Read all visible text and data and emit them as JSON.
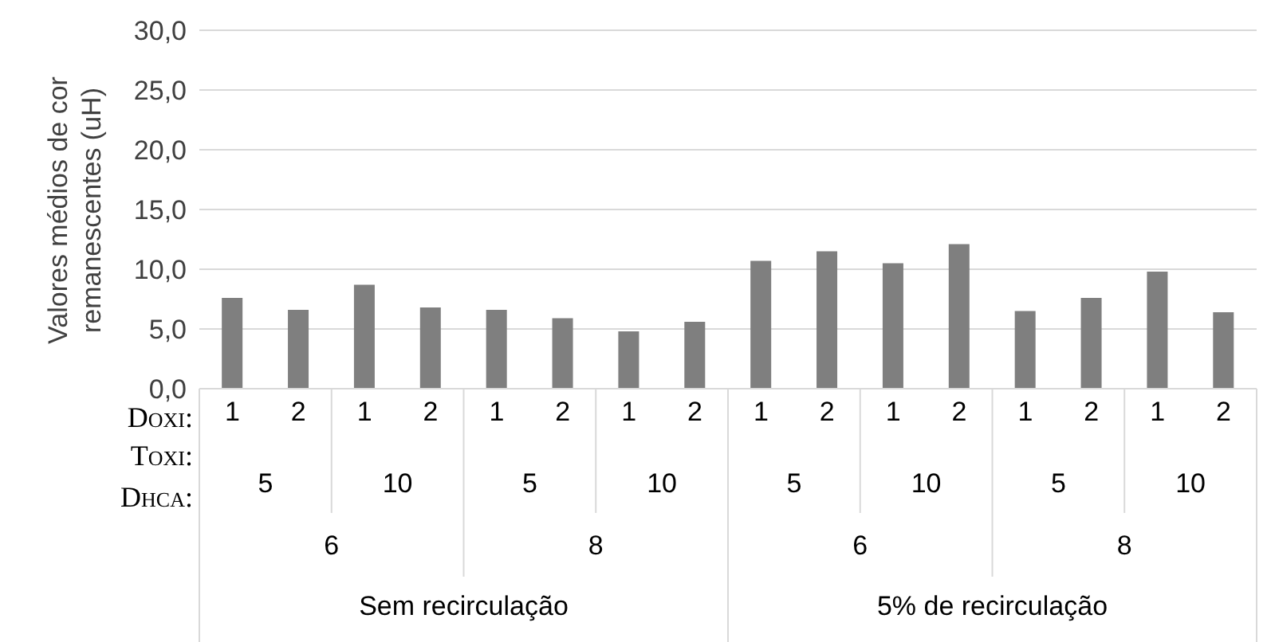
{
  "chart_data": {
    "type": "bar",
    "ylabel": "Valores médios de cor remanescentes (uH)",
    "categories": [
      "1",
      "2",
      "1",
      "2",
      "1",
      "2",
      "1",
      "2",
      "1",
      "2",
      "1",
      "2",
      "1",
      "2",
      "1",
      "2"
    ],
    "values": [
      7.6,
      6.6,
      8.7,
      6.8,
      6.6,
      5.9,
      4.8,
      5.6,
      10.7,
      11.5,
      10.5,
      12.1,
      6.5,
      7.6,
      9.8,
      6.4
    ],
    "color": "#7f7f7f",
    "ylim": [
      0,
      30
    ],
    "yticks": [
      {
        "value": 0,
        "label": "0,0"
      },
      {
        "value": 5,
        "label": "5,0"
      },
      {
        "value": 10,
        "label": "10,0"
      },
      {
        "value": 15,
        "label": "15,0"
      },
      {
        "value": 20,
        "label": "20,0"
      },
      {
        "value": 25,
        "label": "25,0"
      },
      {
        "value": 30,
        "label": "30,0"
      }
    ],
    "grid": "y",
    "annotations": [
      "Doxi:",
      "Toxi:",
      "Dhca:",
      "5",
      "10",
      "5",
      "10",
      "5",
      "10",
      "5",
      "10",
      "6",
      "8",
      "6",
      "8",
      "Sem recirculação",
      "5% de recirculação"
    ]
  }
}
